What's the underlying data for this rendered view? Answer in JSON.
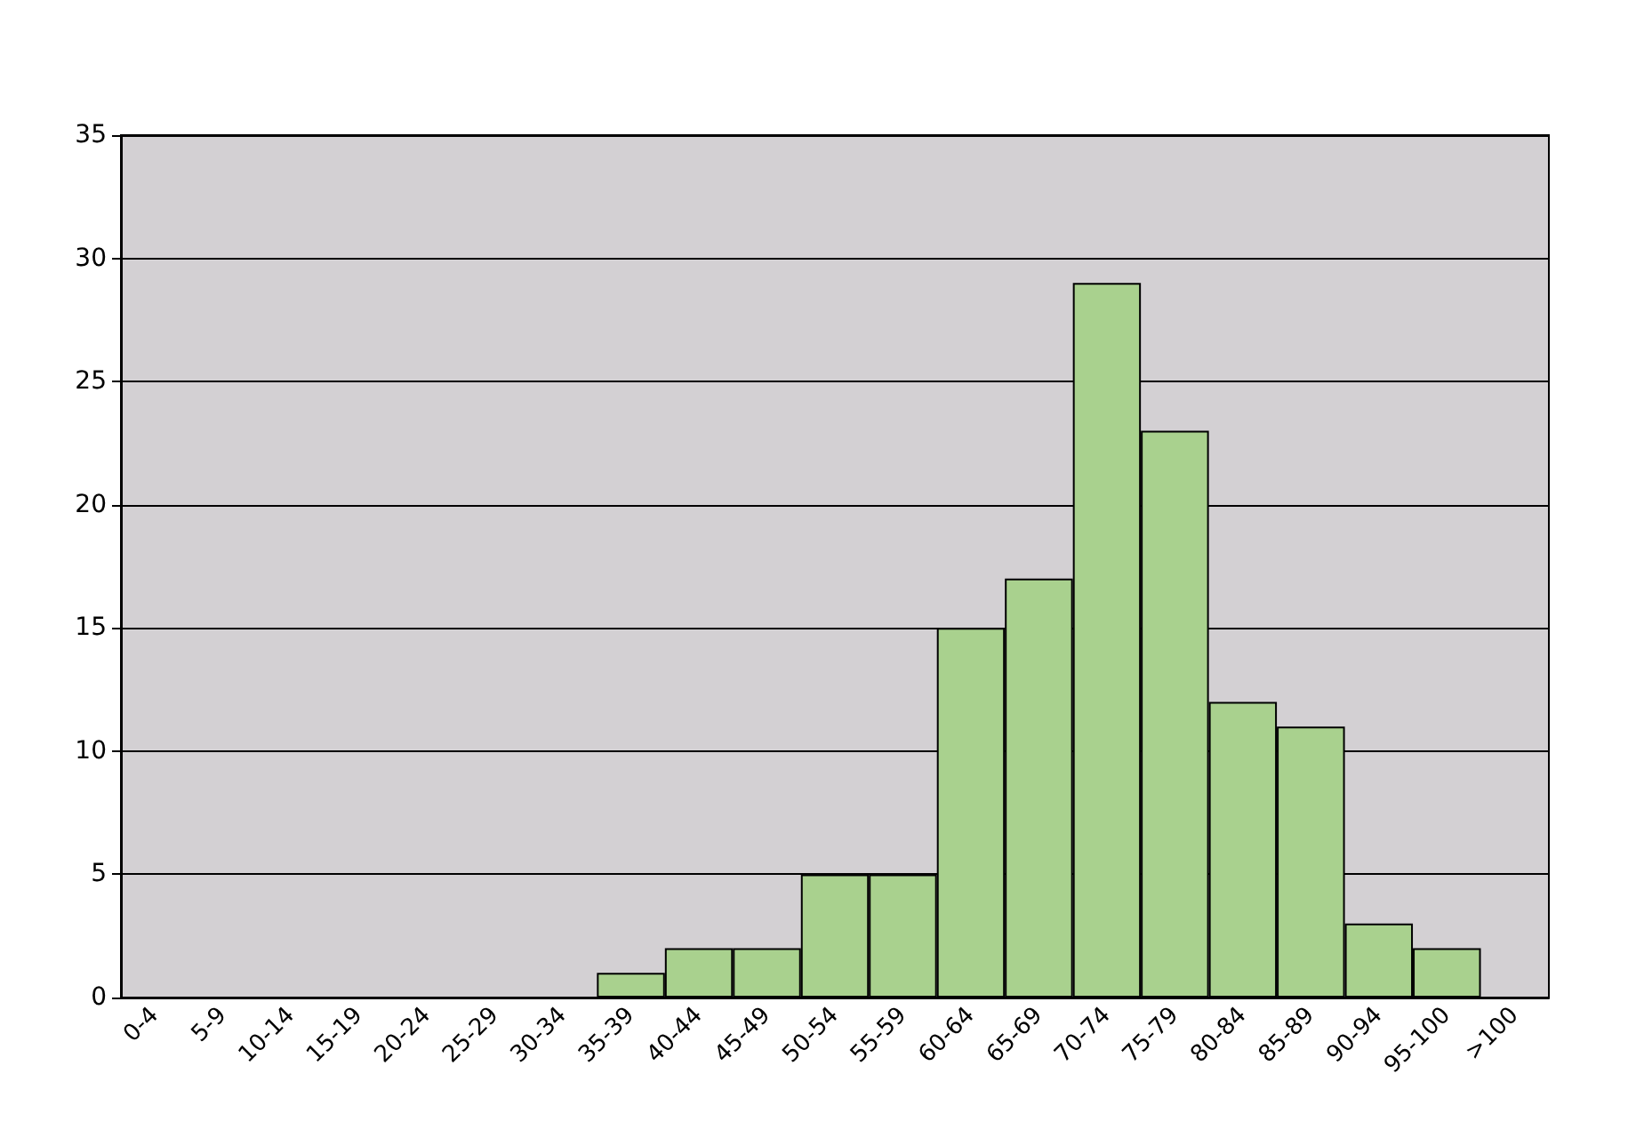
{
  "chart_data": {
    "type": "bar",
    "categories": [
      "0-4",
      "5-9",
      "10-14",
      "15-19",
      "20-24",
      "25-29",
      "30-34",
      "35-39",
      "40-44",
      "45-49",
      "50-54",
      "55-59",
      "60-64",
      "65-69",
      "70-74",
      "75-79",
      "80-84",
      "85-89",
      "90-94",
      "95-100",
      ">100"
    ],
    "values": [
      0,
      0,
      0,
      0,
      0,
      0,
      0,
      1,
      2,
      2,
      5,
      5,
      15,
      17,
      29,
      23,
      12,
      11,
      3,
      2,
      0
    ],
    "color": "#a9d18e",
    "ylim": [
      0,
      35
    ],
    "yticks": [
      0,
      5,
      10,
      15,
      20,
      25,
      30,
      35
    ],
    "grid": "y"
  }
}
